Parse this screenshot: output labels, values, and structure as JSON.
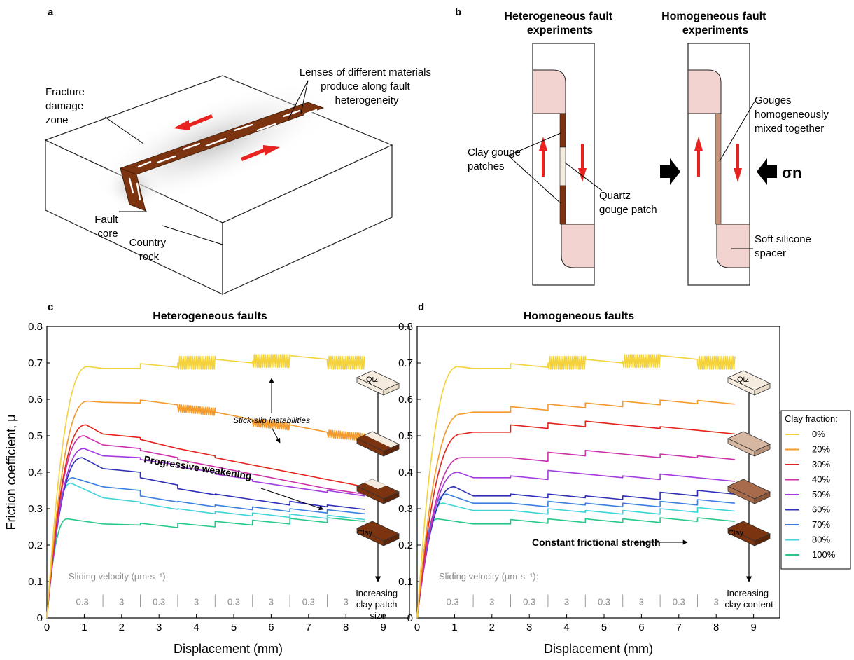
{
  "panel_labels": [
    "a",
    "b",
    "c",
    "d"
  ],
  "schematic_a": {
    "labels": {
      "damage_zone": [
        "Fracture",
        "damage",
        "zone"
      ],
      "lenses": [
        "Lenses of different materials",
        "produce along fault",
        "heterogeneity"
      ],
      "fault_core": [
        "Fault",
        "core"
      ],
      "country_rock": [
        "Country",
        "rock"
      ]
    }
  },
  "schematic_b": {
    "heterogeneous_title": [
      "Heterogeneous fault",
      "experiments"
    ],
    "homogeneous_title": [
      "Homogeneous fault",
      "experiments"
    ],
    "clay_patches": [
      "Clay gouge",
      "patches"
    ],
    "quartz_patch": [
      "Quartz",
      "gouge patch"
    ],
    "gouges_mixed": [
      "Gouges",
      "homogeneously",
      "mixed together"
    ],
    "spacer": [
      "Soft silicone",
      "spacer"
    ],
    "sigma_n": "σn"
  },
  "annotations_c": {
    "stick_slip": "Stick-slip instabilities",
    "weakening": "Progressive weakening",
    "increasing": [
      "Increasing",
      "clay patch",
      "size"
    ],
    "qtz": "Qtz",
    "clay": "Clay"
  },
  "annotations_d": {
    "constant": "Constant frictional strength",
    "increasing": [
      "Increasing",
      "clay content"
    ],
    "qtz": "Qtz",
    "clay": "Clay"
  },
  "velocity_label": "Sliding velocity (μm·s⁻¹):",
  "velocity_steps": [
    "0.3",
    "3",
    "0.3",
    "3",
    "0.3",
    "3",
    "0.3",
    "3"
  ],
  "legend_title": "Clay fraction:",
  "colors": {
    "clay_dark": "#7b3310",
    "clay_mid": "#a86b4c",
    "clay_light": "#d6b7a2",
    "quartz": "#f5ecdf",
    "spacer": "#f2d3cf",
    "arrow_red": "#e8221e"
  },
  "chart_data": [
    {
      "type": "line",
      "title": "Heterogeneous faults",
      "xlabel": "Displacement (mm)",
      "ylabel": "Friction coefficient, μ",
      "xlim": [
        0,
        9.7
      ],
      "ylim": [
        0,
        0.8
      ],
      "xticks": [
        "0",
        "1",
        "2",
        "3",
        "4",
        "5",
        "6",
        "7",
        "8",
        "9"
      ],
      "yticks": [
        "0",
        "0.1",
        "0.2",
        "0.3",
        "0.4",
        "0.5",
        "0.6",
        "0.7",
        "0.8"
      ],
      "segment_edges_mm": [
        1.5,
        2.5,
        3.5,
        4.5,
        5.5,
        6.5,
        7.5,
        8.5
      ],
      "stick_slip_segments": [
        [
          3.5,
          4.5
        ],
        [
          5.5,
          6.5
        ],
        [
          7.5,
          8.5
        ]
      ],
      "series": [
        {
          "name": "0%",
          "color": "#f4d23c",
          "peak": [
            1.1,
            0.69
          ],
          "seg": [
            [
              0.685,
              0.685
            ],
            [
              0.688,
              0.688
            ],
            [
              0.69,
              0.69
            ],
            [
              0.7,
              0.7
            ],
            [
              0.695,
              0.695
            ],
            [
              0.71,
              0.71
            ],
            [
              0.69,
              0.69
            ],
            [
              0.7,
              0.7
            ]
          ],
          "slip_amp": 0.035
        },
        {
          "name": "20%",
          "color": "#f39a2a",
          "peak": [
            1.1,
            0.595
          ],
          "seg": [
            [
              0.592,
              0.59
            ],
            [
              0.588,
              0.585
            ],
            [
              0.57,
              0.56
            ],
            [
              0.555,
              0.545
            ],
            [
              0.53,
              0.52
            ],
            [
              0.52,
              0.51
            ],
            [
              0.5,
              0.49
            ],
            [
              0.48,
              0.47
            ]
          ],
          "slip_amp": 0.02
        },
        {
          "name": "30%",
          "color": "#e4231b",
          "peak": [
            1.05,
            0.53
          ],
          "seg": [
            [
              0.505,
              0.495
            ],
            [
              0.48,
              0.465
            ],
            [
              0.455,
              0.445
            ],
            [
              0.43,
              0.42
            ],
            [
              0.41,
              0.4
            ],
            [
              0.39,
              0.38
            ],
            [
              0.37,
              0.36
            ],
            [
              0.355,
              0.345
            ]
          ],
          "slip_amp": 0
        },
        {
          "name": "40%",
          "color": "#cc2fa8",
          "peak": [
            1.0,
            0.5
          ],
          "seg": [
            [
              0.475,
              0.465
            ],
            [
              0.45,
              0.44
            ],
            [
              0.425,
              0.415
            ],
            [
              0.405,
              0.395
            ],
            [
              0.385,
              0.375
            ],
            [
              0.365,
              0.355
            ],
            [
              0.345,
              0.34
            ],
            [
              0.335,
              0.33
            ]
          ],
          "slip_amp": 0
        },
        {
          "name": "50%",
          "color": "#a33be0",
          "peak": [
            1.0,
            0.465
          ],
          "seg": [
            [
              0.445,
              0.44
            ],
            [
              0.425,
              0.42
            ],
            [
              0.405,
              0.4
            ],
            [
              0.385,
              0.38
            ],
            [
              0.365,
              0.36
            ],
            [
              0.35,
              0.345
            ],
            [
              0.34,
              0.335
            ],
            [
              0.335,
              0.333
            ]
          ],
          "slip_amp": 0
        },
        {
          "name": "60%",
          "color": "#2f2fb8",
          "peak": [
            0.95,
            0.44
          ],
          "seg": [
            [
              0.41,
              0.4
            ],
            [
              0.375,
              0.365
            ],
            [
              0.345,
              0.338
            ],
            [
              0.33,
              0.325
            ],
            [
              0.315,
              0.31
            ],
            [
              0.31,
              0.305
            ],
            [
              0.3,
              0.298
            ],
            [
              0.296,
              0.295
            ]
          ],
          "slip_amp": 0
        },
        {
          "name": "70%",
          "color": "#3b7fe0",
          "peak": [
            0.7,
            0.385
          ],
          "seg": [
            [
              0.36,
              0.35
            ],
            [
              0.325,
              0.318
            ],
            [
              0.31,
              0.305
            ],
            [
              0.3,
              0.297
            ],
            [
              0.295,
              0.292
            ],
            [
              0.29,
              0.288
            ],
            [
              0.287,
              0.286
            ],
            [
              0.285,
              0.284
            ]
          ],
          "slip_amp": 0
        },
        {
          "name": "80%",
          "color": "#3fd4d8",
          "peak": [
            0.65,
            0.37
          ],
          "seg": [
            [
              0.33,
              0.318
            ],
            [
              0.305,
              0.298
            ],
            [
              0.29,
              0.286
            ],
            [
              0.282,
              0.28
            ],
            [
              0.278,
              0.276
            ],
            [
              0.275,
              0.273
            ],
            [
              0.272,
              0.27
            ],
            [
              0.27,
              0.268
            ]
          ],
          "slip_amp": 0
        },
        {
          "name": "100%",
          "color": "#27c98a",
          "peak": [
            0.55,
            0.272
          ],
          "seg": [
            [
              0.258,
              0.255
            ],
            [
              0.25,
              0.248
            ],
            [
              0.25,
              0.25
            ],
            [
              0.255,
              0.255
            ],
            [
              0.258,
              0.258
            ],
            [
              0.263,
              0.262
            ],
            [
              0.265,
              0.265
            ],
            [
              0.27,
              0.27
            ]
          ],
          "slip_amp": 0
        }
      ]
    },
    {
      "type": "line",
      "title": "Homogeneous faults",
      "xlabel": "Displacement (mm)",
      "xlim": [
        0,
        9.7
      ],
      "ylim": [
        0,
        0.8
      ],
      "xticks": [
        "0",
        "1",
        "2",
        "3",
        "4",
        "5",
        "6",
        "7",
        "8",
        "9"
      ],
      "segment_edges_mm": [
        1.5,
        2.5,
        3.5,
        4.5,
        5.5,
        6.5,
        7.5,
        8.5
      ],
      "stick_slip_segments": [
        [
          3.5,
          4.5
        ],
        [
          5.5,
          6.5
        ],
        [
          7.5,
          8.5
        ]
      ],
      "series": [
        {
          "name": "0%",
          "color": "#f4d23c",
          "peak": [
            1.1,
            0.69
          ],
          "seg": [
            [
              0.685,
              0.685
            ],
            [
              0.688,
              0.688
            ],
            [
              0.69,
              0.69
            ],
            [
              0.7,
              0.7
            ],
            [
              0.695,
              0.695
            ],
            [
              0.71,
              0.71
            ],
            [
              0.69,
              0.69
            ],
            [
              0.7,
              0.7
            ]
          ],
          "slip_amp": 0.035
        },
        {
          "name": "20%",
          "color": "#f39a2a",
          "peak": [
            1.2,
            0.56
          ],
          "seg": [
            [
              0.565,
              0.565
            ],
            [
              0.57,
              0.57
            ],
            [
              0.577,
              0.577
            ],
            [
              0.58,
              0.58
            ],
            [
              0.585,
              0.585
            ],
            [
              0.588,
              0.588
            ],
            [
              0.587,
              0.587
            ],
            [
              0.587,
              0.587
            ]
          ],
          "slip_amp": 0
        },
        {
          "name": "30%",
          "color": "#e4231b",
          "peak": [
            1.2,
            0.505
          ],
          "seg": [
            [
              0.51,
              0.51
            ],
            [
              0.52,
              0.52
            ],
            [
              0.525,
              0.525
            ],
            [
              0.53,
              0.53
            ],
            [
              0.52,
              0.52
            ],
            [
              0.515,
              0.515
            ],
            [
              0.505,
              0.505
            ],
            [
              0.498,
              0.498
            ]
          ],
          "slip_amp": 0
        },
        {
          "name": "40%",
          "color": "#cc2fa8",
          "peak": [
            1.2,
            0.44
          ],
          "seg": [
            [
              0.44,
              0.44
            ],
            [
              0.43,
              0.43
            ],
            [
              0.445,
              0.445
            ],
            [
              0.45,
              0.45
            ],
            [
              0.44,
              0.44
            ],
            [
              0.44,
              0.44
            ],
            [
              0.435,
              0.435
            ],
            [
              0.428,
              0.428
            ]
          ],
          "slip_amp": 0
        },
        {
          "name": "50%",
          "color": "#a33be0",
          "peak": [
            1.1,
            0.4
          ],
          "seg": [
            [
              0.385,
              0.385
            ],
            [
              0.38,
              0.38
            ],
            [
              0.395,
              0.395
            ],
            [
              0.385,
              0.385
            ],
            [
              0.38,
              0.38
            ],
            [
              0.385,
              0.385
            ],
            [
              0.375,
              0.375
            ],
            [
              0.37,
              0.37
            ]
          ],
          "slip_amp": 0
        },
        {
          "name": "60%",
          "color": "#2f2fb8",
          "peak": [
            1.0,
            0.36
          ],
          "seg": [
            [
              0.335,
              0.335
            ],
            [
              0.33,
              0.33
            ],
            [
              0.33,
              0.33
            ],
            [
              0.325,
              0.325
            ],
            [
              0.325,
              0.325
            ],
            [
              0.335,
              0.335
            ],
            [
              0.34,
              0.34
            ],
            [
              0.345,
              0.345
            ]
          ],
          "slip_amp": 0
        },
        {
          "name": "70%",
          "color": "#3b7fe0",
          "peak": [
            0.8,
            0.34
          ],
          "seg": [
            [
              0.315,
              0.315
            ],
            [
              0.305,
              0.305
            ],
            [
              0.31,
              0.31
            ],
            [
              0.305,
              0.305
            ],
            [
              0.305,
              0.305
            ],
            [
              0.31,
              0.31
            ],
            [
              0.315,
              0.315
            ],
            [
              0.315,
              0.315
            ]
          ],
          "slip_amp": 0
        },
        {
          "name": "80%",
          "color": "#3fd4d8",
          "peak": [
            0.7,
            0.315
          ],
          "seg": [
            [
              0.295,
              0.295
            ],
            [
              0.285,
              0.285
            ],
            [
              0.29,
              0.29
            ],
            [
              0.285,
              0.285
            ],
            [
              0.285,
              0.285
            ],
            [
              0.29,
              0.29
            ],
            [
              0.293,
              0.293
            ],
            [
              0.295,
              0.295
            ]
          ],
          "slip_amp": 0
        },
        {
          "name": "100%",
          "color": "#27c98a",
          "peak": [
            0.55,
            0.272
          ],
          "seg": [
            [
              0.258,
              0.258
            ],
            [
              0.26,
              0.26
            ],
            [
              0.262,
              0.262
            ],
            [
              0.262,
              0.262
            ],
            [
              0.262,
              0.262
            ],
            [
              0.265,
              0.265
            ],
            [
              0.265,
              0.265
            ],
            [
              0.268,
              0.268
            ]
          ],
          "slip_amp": 0
        }
      ]
    }
  ]
}
